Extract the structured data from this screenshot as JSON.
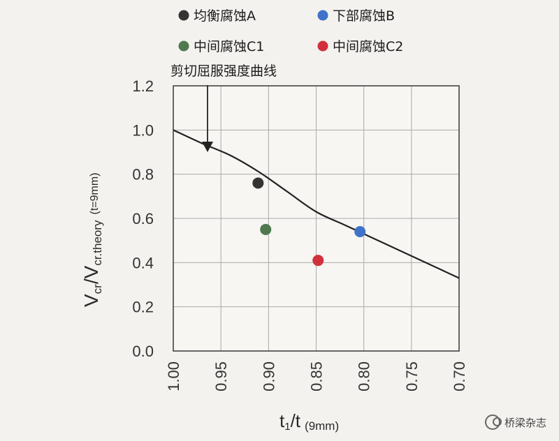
{
  "chart_data": {
    "type": "scatter",
    "ylabel_main": "V",
    "ylabel_sub1": "cr",
    "ylabel_mid": "/V",
    "ylabel_sub2": "cr.theory",
    "ylabel_note": "(t=9mm)",
    "xlabel_main": "t",
    "xlabel_sub": "1",
    "xlabel_mid": "/t",
    "xlabel_note": "(9mm)",
    "xlim": [
      1.0,
      0.7
    ],
    "ylim": [
      0.0,
      1.2
    ],
    "x_ticks": [
      "1.00",
      "0.95",
      "0.90",
      "0.85",
      "0.80",
      "0.75",
      "0.70"
    ],
    "y_ticks": [
      "0.0",
      "0.2",
      "0.4",
      "0.6",
      "0.8",
      "1.0",
      "1.2"
    ],
    "grid": true,
    "legend_position": "top",
    "series": [
      {
        "name": "均衡腐蚀A",
        "color": "#333333",
        "x": [
          0.911
        ],
        "y": [
          0.76
        ]
      },
      {
        "name": "下部腐蚀B",
        "color": "#3f72c9",
        "x": [
          0.804
        ],
        "y": [
          0.54
        ]
      },
      {
        "name": "中间腐蚀C1",
        "color": "#4f7a4f",
        "x": [
          0.903
        ],
        "y": [
          0.55
        ]
      },
      {
        "name": "中间腐蚀C2",
        "color": "#d0313d",
        "x": [
          0.848
        ],
        "y": [
          0.41
        ]
      }
    ],
    "curve": {
      "name": "剪切屈服强度曲线",
      "x": [
        1.0,
        0.97,
        0.94,
        0.91,
        0.88,
        0.85,
        0.82,
        0.79,
        0.76,
        0.73,
        0.7
      ],
      "y": [
        1.0,
        0.94,
        0.885,
        0.81,
        0.72,
        0.63,
        0.57,
        0.51,
        0.45,
        0.39,
        0.33
      ]
    },
    "annotation": "剪切屈服强度曲线"
  },
  "watermark": {
    "icon": "wechat-icon",
    "text": "桥梁杂志"
  }
}
